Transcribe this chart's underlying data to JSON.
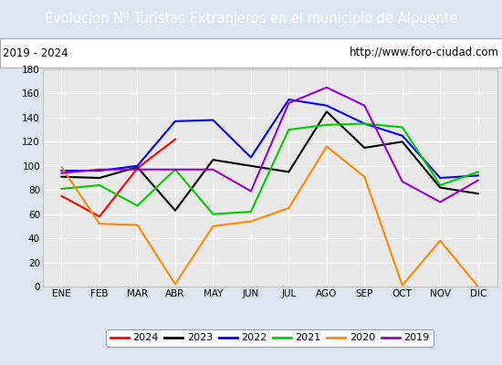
{
  "title": "Evolucion Nº Turistas Extranjeros en el municipio de Alpuente",
  "subtitle_left": "2019 - 2024",
  "subtitle_right": "http://www.foro-ciudad.com",
  "xlabel_months": [
    "ENE",
    "FEB",
    "MAR",
    "ABR",
    "MAY",
    "JUN",
    "JUL",
    "AGO",
    "SEP",
    "OCT",
    "NOV",
    "DIC"
  ],
  "ylim": [
    0,
    180
  ],
  "yticks": [
    0,
    20,
    40,
    60,
    80,
    100,
    120,
    140,
    160,
    180
  ],
  "series": {
    "2024": {
      "color": "#ff0000",
      "values": [
        75,
        58,
        98,
        122,
        null,
        null,
        null,
        null,
        null,
        null,
        null,
        null
      ]
    },
    "2023": {
      "color": "#000000",
      "values": [
        91,
        90,
        99,
        63,
        105,
        100,
        95,
        145,
        115,
        120,
        82,
        77
      ]
    },
    "2022": {
      "color": "#0000ff",
      "values": [
        96,
        96,
        100,
        137,
        138,
        107,
        155,
        150,
        135,
        125,
        90,
        92
      ]
    },
    "2021": {
      "color": "#00cc00",
      "values": [
        81,
        84,
        67,
        97,
        60,
        62,
        130,
        134,
        135,
        132,
        84,
        95
      ]
    },
    "2020": {
      "color": "#ff8800",
      "values": [
        99,
        52,
        51,
        2,
        50,
        54,
        65,
        116,
        91,
        1,
        38,
        0
      ]
    },
    "2019": {
      "color": "#9900cc",
      "values": [
        94,
        97,
        97,
        97,
        97,
        79,
        152,
        165,
        150,
        87,
        70,
        88
      ]
    }
  },
  "legend_order": [
    "2024",
    "2023",
    "2022",
    "2021",
    "2020",
    "2019"
  ],
  "title_bg_color": "#4472c4",
  "title_text_color": "#ffffff",
  "plot_bg_color": "#e8e8e8",
  "outer_bg_color": "#dce6f1",
  "grid_color": "#ffffff",
  "subtitle_bg_color": "#ffffff",
  "title_fontsize": 10.5,
  "subtitle_fontsize": 8.5,
  "tick_fontsize": 7.5,
  "legend_fontsize": 8
}
